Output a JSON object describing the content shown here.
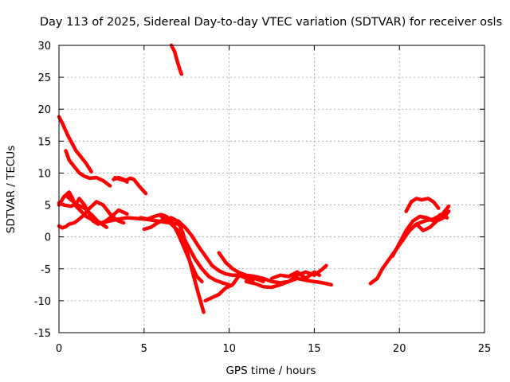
{
  "chart_data": {
    "type": "scatter",
    "title": "Day 113 of 2025, Sidereal Day-to-day VTEC variation (SDTVAR) for receiver osls",
    "xlabel": "GPS time / hours",
    "ylabel": "SDTVAR / TECUs",
    "xlim": [
      0,
      25
    ],
    "ylim": [
      -15,
      30
    ],
    "xticks": [
      "0",
      "5",
      "10",
      "15",
      "20",
      "25"
    ],
    "yticks": [
      "-15",
      "-10",
      "-5",
      "0",
      "5",
      "10",
      "15",
      "20",
      "25",
      "30"
    ],
    "grid": true,
    "marker_color": "#ff0000",
    "series": [
      {
        "name": "trace-1",
        "x": [
          0.0,
          0.2,
          0.5,
          0.8,
          1.0,
          1.3,
          1.6,
          1.9
        ],
        "y": [
          18.8,
          17.8,
          16.0,
          14.5,
          13.5,
          12.5,
          11.5,
          10.2
        ]
      },
      {
        "name": "trace-2",
        "x": [
          0.4,
          0.6,
          0.9,
          1.2,
          1.5,
          1.8,
          2.2,
          2.6,
          3.0
        ],
        "y": [
          13.5,
          12.0,
          11.0,
          10.0,
          9.5,
          9.2,
          9.3,
          8.8,
          8.0
        ]
      },
      {
        "name": "trace-3",
        "x": [
          3.3,
          3.6,
          3.9,
          4.2,
          4.4,
          4.7,
          5.1
        ],
        "y": [
          9.3,
          9.0,
          8.8,
          9.2,
          9.0,
          8.0,
          6.8
        ]
      },
      {
        "name": "trace-4",
        "x": [
          3.2,
          3.5,
          3.8,
          4.0
        ],
        "y": [
          9.0,
          9.3,
          9.0,
          8.6
        ]
      },
      {
        "name": "trace-5",
        "x": [
          6.6,
          6.8,
          6.95,
          7.1,
          7.2
        ],
        "y": [
          30.0,
          29.0,
          27.5,
          26.2,
          25.5
        ]
      },
      {
        "name": "trace-6",
        "x": [
          0.0,
          0.3,
          0.6,
          0.8,
          1.0,
          1.3,
          1.6,
          2.0,
          2.5,
          3.0,
          3.5,
          4.0,
          4.5,
          5.0,
          5.5,
          6.0,
          6.5,
          7.0
        ],
        "y": [
          5.0,
          6.3,
          7.0,
          6.0,
          4.8,
          4.0,
          3.2,
          2.6,
          2.2,
          2.5,
          2.8,
          3.0,
          2.9,
          2.8,
          2.6,
          2.4,
          2.2,
          2.0
        ]
      },
      {
        "name": "trace-7",
        "x": [
          0.0,
          0.2,
          0.4,
          0.6,
          0.9,
          1.2,
          1.5,
          1.8,
          2.2,
          2.6,
          3.0,
          3.4,
          3.8
        ],
        "y": [
          1.7,
          1.4,
          1.6,
          2.0,
          2.2,
          2.8,
          3.5,
          4.5,
          5.5,
          5.0,
          3.6,
          2.6,
          2.2
        ]
      },
      {
        "name": "trace-8",
        "x": [
          0.0,
          0.3,
          0.7,
          1.0,
          1.2,
          1.5,
          1.8,
          2.0,
          2.3,
          2.7,
          3.1,
          3.5,
          4.0
        ],
        "y": [
          5.3,
          5.0,
          4.8,
          5.2,
          6.0,
          5.0,
          3.5,
          2.5,
          2.0,
          2.4,
          3.2,
          4.2,
          3.6
        ]
      },
      {
        "name": "trace-9",
        "x": [
          0.4,
          0.8,
          1.1,
          1.5,
          1.9,
          2.3,
          2.8
        ],
        "y": [
          6.5,
          5.6,
          5.0,
          4.5,
          3.5,
          2.4,
          1.5
        ]
      },
      {
        "name": "trace-10",
        "x": [
          5.0,
          5.4,
          5.8,
          6.2,
          6.6,
          7.0,
          7.3,
          7.6,
          7.9,
          8.2,
          8.5
        ],
        "y": [
          1.2,
          1.5,
          2.2,
          2.8,
          3.0,
          2.4,
          0.5,
          -3.0,
          -6.0,
          -9.0,
          -11.8
        ]
      },
      {
        "name": "trace-11",
        "x": [
          4.8,
          5.2,
          5.6,
          6.0,
          6.3,
          6.6,
          7.0,
          7.4,
          7.8,
          8.1,
          8.4
        ],
        "y": [
          3.0,
          2.8,
          3.2,
          3.5,
          3.2,
          2.5,
          0.5,
          -2.0,
          -4.5,
          -6.2,
          -7.0
        ]
      },
      {
        "name": "trace-12",
        "x": [
          6.0,
          6.4,
          6.8,
          7.2,
          7.6,
          8.0,
          8.4,
          8.8,
          9.2,
          9.6,
          10.0
        ],
        "y": [
          3.2,
          2.5,
          1.5,
          0.5,
          -1.5,
          -3.5,
          -5.0,
          -6.2,
          -6.8,
          -7.2,
          -7.5
        ]
      },
      {
        "name": "trace-13",
        "x": [
          7.0,
          7.4,
          7.8,
          8.2,
          8.6,
          9.0,
          9.4,
          9.8,
          10.2,
          10.6,
          11.0,
          11.5,
          12.0
        ],
        "y": [
          2.5,
          1.5,
          0.2,
          -1.5,
          -3.0,
          -4.5,
          -5.3,
          -5.8,
          -6.0,
          -6.0,
          -6.2,
          -6.5,
          -7.0
        ]
      },
      {
        "name": "trace-14",
        "x": [
          9.4,
          9.8,
          10.2,
          10.6,
          11.0,
          11.5,
          12.0,
          12.5,
          13.0,
          13.5,
          14.0,
          14.5,
          15.0,
          15.5,
          16.0
        ],
        "y": [
          -2.5,
          -4.0,
          -5.0,
          -5.6,
          -6.0,
          -6.2,
          -6.5,
          -7.0,
          -7.2,
          -7.0,
          -6.5,
          -6.8,
          -7.0,
          -7.2,
          -7.5
        ]
      },
      {
        "name": "trace-15",
        "x": [
          8.6,
          9.0,
          9.4,
          9.8,
          10.2,
          10.6,
          11.0,
          11.4
        ],
        "y": [
          -10.0,
          -9.5,
          -9.0,
          -8.0,
          -7.5,
          -6.0,
          -6.5,
          -6.8
        ]
      },
      {
        "name": "trace-16",
        "x": [
          11.0,
          11.5,
          12.0,
          12.5,
          13.0,
          13.5,
          14.0,
          14.5,
          15.0,
          15.5,
          15.7
        ],
        "y": [
          -7.0,
          -7.3,
          -7.8,
          -7.9,
          -7.5,
          -7.0,
          -6.0,
          -5.5,
          -6.0,
          -5.0,
          -4.5
        ]
      },
      {
        "name": "trace-17",
        "x": [
          12.5,
          13.0,
          13.5,
          14.0,
          14.5,
          15.0,
          15.3
        ],
        "y": [
          -6.5,
          -6.0,
          -6.2,
          -5.5,
          -6.5,
          -5.5,
          -6.0
        ]
      },
      {
        "name": "trace-18",
        "x": [
          18.3,
          18.7,
          19.0,
          19.4,
          19.8,
          20.2,
          20.6,
          21.0,
          21.5,
          22.0,
          22.5,
          22.9
        ],
        "y": [
          -7.3,
          -6.5,
          -5.0,
          -3.5,
          -2.0,
          -0.5,
          1.0,
          2.0,
          2.5,
          2.8,
          3.5,
          4.8
        ]
      },
      {
        "name": "trace-19",
        "x": [
          19.6,
          20.0,
          20.4,
          20.8,
          21.2,
          21.6,
          22.0,
          22.4,
          22.8
        ],
        "y": [
          -3.0,
          -1.0,
          1.0,
          2.5,
          3.2,
          3.0,
          2.5,
          3.5,
          3.0
        ]
      },
      {
        "name": "trace-20",
        "x": [
          20.4,
          20.7,
          21.0,
          21.3,
          21.7,
          22.0,
          22.3
        ],
        "y": [
          4.0,
          5.5,
          6.0,
          5.8,
          6.0,
          5.5,
          4.5
        ]
      },
      {
        "name": "trace-21",
        "x": [
          20.6,
          21.0,
          21.4,
          21.8,
          22.2,
          22.6,
          22.9
        ],
        "y": [
          1.0,
          2.0,
          1.0,
          1.5,
          2.5,
          3.0,
          4.0
        ]
      }
    ]
  }
}
